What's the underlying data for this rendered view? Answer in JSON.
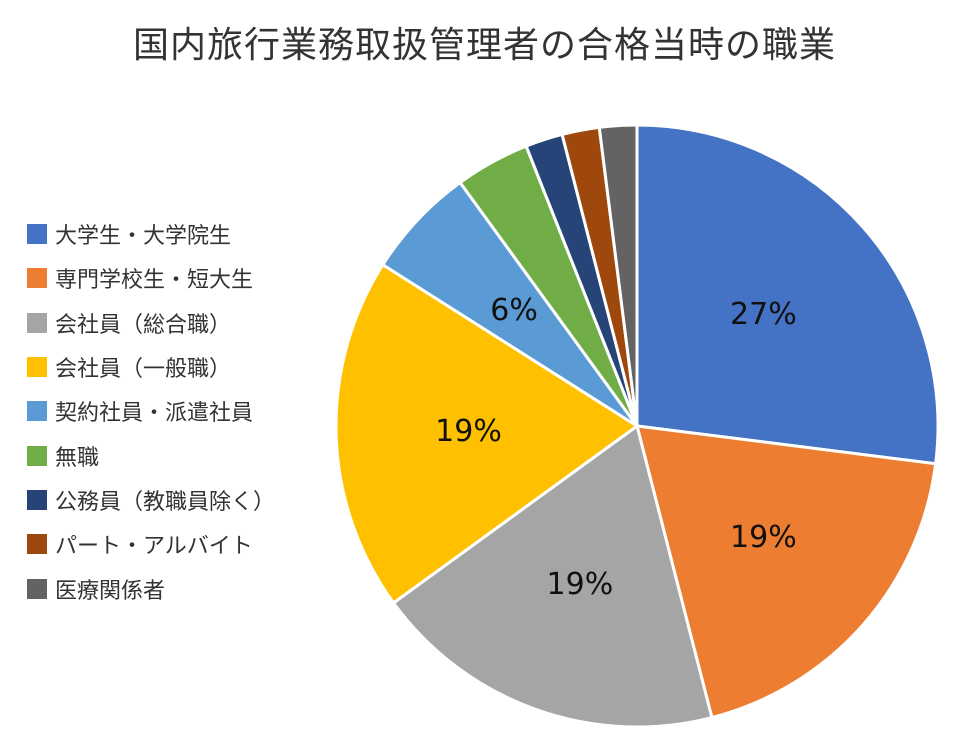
{
  "chart_data": {
    "type": "pie",
    "title": "国内旅行業務取扱管理者の合格当時の職業",
    "categories": [
      "大学生・大学院生",
      "専門学校生・短大生",
      "会社員（総合職）",
      "会社員（一般職）",
      "契約社員・派遣社員",
      "無職",
      "公務員（教職員除く）",
      "パート・アルバイト",
      "医療関係者"
    ],
    "values": [
      27,
      19,
      19,
      19,
      6,
      4,
      2,
      2,
      2
    ],
    "colors": [
      "#4472C4",
      "#ED7D31",
      "#A5A5A5",
      "#FFC000",
      "#5B9BD5",
      "#70AD47",
      "#264478",
      "#9E480E",
      "#636363"
    ],
    "data_labels": [
      "27%",
      "19%",
      "19%",
      "19%",
      "6%",
      "",
      "",
      "",
      ""
    ],
    "legend_position": "left"
  }
}
